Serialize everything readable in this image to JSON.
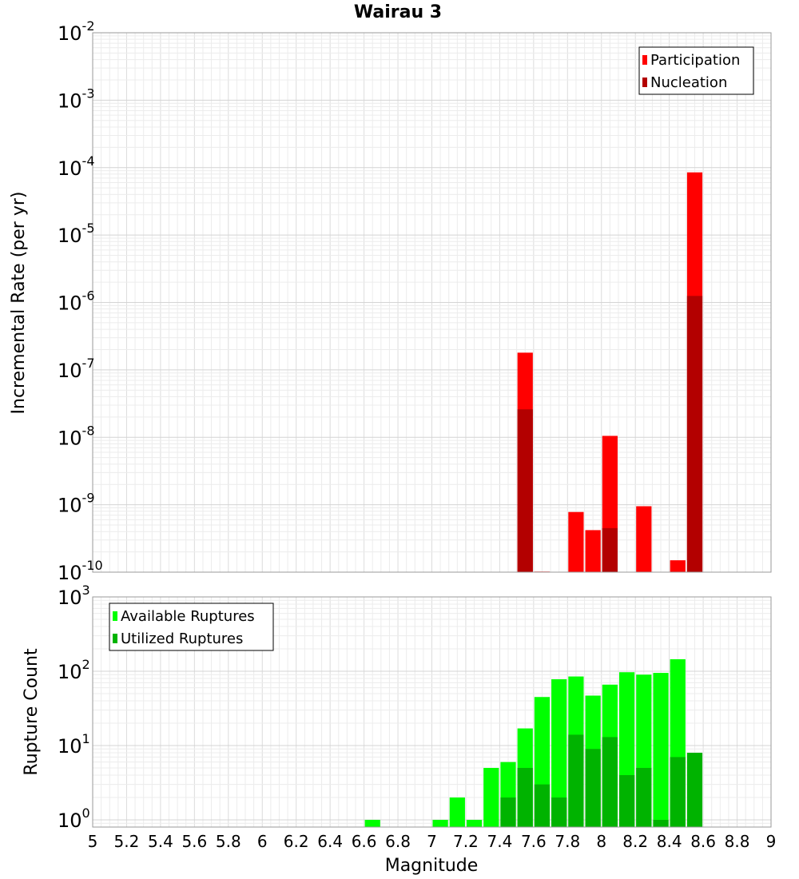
{
  "title": "Wairau 3",
  "chart_data": [
    {
      "type": "bar",
      "name": "rate-panel",
      "ylabel": "Incremental Rate (per yr)",
      "yscale": "log",
      "ylim": [
        1e-10,
        0.01
      ],
      "ytick_exponents": [
        "-2",
        "-3",
        "-4",
        "-5",
        "-6",
        "-7",
        "-8",
        "-9",
        "-10"
      ],
      "legend": {
        "position": "top-right",
        "entries": [
          "Participation",
          "Nucleation"
        ]
      },
      "grid": true,
      "series": [
        {
          "name": "Participation",
          "color": "#ff0000",
          "points": [
            {
              "x": 7.55,
              "y": 1.8e-07
            },
            {
              "x": 7.65,
              "y": 1.02e-10
            },
            {
              "x": 7.85,
              "y": 7.8e-10
            },
            {
              "x": 7.95,
              "y": 4.2e-10
            },
            {
              "x": 8.05,
              "y": 1.05e-08
            },
            {
              "x": 8.25,
              "y": 9.5e-10
            },
            {
              "x": 8.45,
              "y": 1.5e-10
            },
            {
              "x": 8.55,
              "y": 8.5e-05
            }
          ]
        },
        {
          "name": "Nucleation",
          "color": "#b30000",
          "points": [
            {
              "x": 7.55,
              "y": 2.6e-08
            },
            {
              "x": 8.05,
              "y": 4.5e-10
            },
            {
              "x": 8.55,
              "y": 1.25e-06
            }
          ]
        }
      ]
    },
    {
      "type": "bar",
      "name": "count-panel",
      "xlabel": "Magnitude",
      "ylabel": "Rupture Count",
      "yscale": "log",
      "ylim": [
        0.8,
        1000
      ],
      "ytick_exponents": [
        "3",
        "2",
        "1",
        "0"
      ],
      "xlim": [
        5,
        9
      ],
      "xticks": [
        "5",
        "5.2",
        "5.4",
        "5.6",
        "5.8",
        "6",
        "6.2",
        "6.4",
        "6.6",
        "6.8",
        "7",
        "7.2",
        "7.4",
        "7.6",
        "7.8",
        "8",
        "8.2",
        "8.4",
        "8.6",
        "8.8",
        "9"
      ],
      "legend": {
        "position": "top-left",
        "entries": [
          "Available Ruptures",
          "Utilized Ruptures"
        ]
      },
      "grid": true,
      "series": [
        {
          "name": "Available Ruptures",
          "color": "#00ff00",
          "points": [
            {
              "x": 6.65,
              "y": 1
            },
            {
              "x": 7.05,
              "y": 1
            },
            {
              "x": 7.15,
              "y": 2
            },
            {
              "x": 7.25,
              "y": 1
            },
            {
              "x": 7.35,
              "y": 5
            },
            {
              "x": 7.45,
              "y": 6
            },
            {
              "x": 7.55,
              "y": 17
            },
            {
              "x": 7.65,
              "y": 45
            },
            {
              "x": 7.75,
              "y": 78
            },
            {
              "x": 7.85,
              "y": 85
            },
            {
              "x": 7.95,
              "y": 47
            },
            {
              "x": 8.05,
              "y": 66
            },
            {
              "x": 8.15,
              "y": 97
            },
            {
              "x": 8.25,
              "y": 90
            },
            {
              "x": 8.35,
              "y": 95
            },
            {
              "x": 8.45,
              "y": 145
            }
          ]
        },
        {
          "name": "Utilized Ruptures",
          "color": "#00b300",
          "points": [
            {
              "x": 7.45,
              "y": 2
            },
            {
              "x": 7.55,
              "y": 5
            },
            {
              "x": 7.65,
              "y": 3
            },
            {
              "x": 7.75,
              "y": 2
            },
            {
              "x": 7.85,
              "y": 14
            },
            {
              "x": 7.95,
              "y": 9
            },
            {
              "x": 8.05,
              "y": 13
            },
            {
              "x": 8.15,
              "y": 4
            },
            {
              "x": 8.25,
              "y": 5
            },
            {
              "x": 8.35,
              "y": 1
            },
            {
              "x": 8.45,
              "y": 7
            },
            {
              "x": 8.55,
              "y": 8
            }
          ]
        }
      ]
    }
  ]
}
